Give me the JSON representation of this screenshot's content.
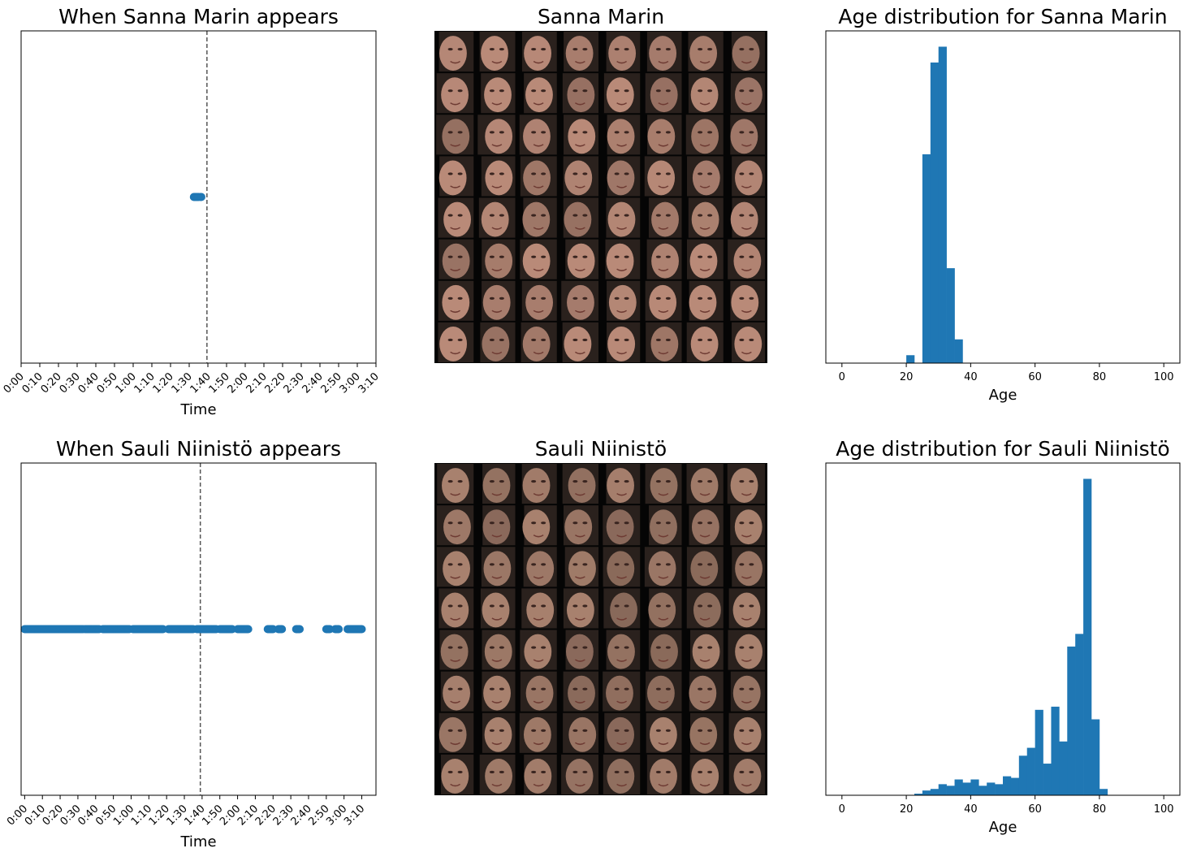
{
  "colors": {
    "marker": "#1f77b4",
    "bar": "#1f77b4",
    "spine": "#000000",
    "refline": "#555555",
    "background": "#ffffff",
    "face_tile_bg": "#050505",
    "face_skin_marin": "#b98a78",
    "face_skin_niinisto": "#a8816e"
  },
  "chart_data": [
    {
      "id": "timeline-marin",
      "type": "scatter",
      "title": "When Sanna Marin appears",
      "xlabel": "Time",
      "ylabel": "",
      "yticks_visible": false,
      "xticks": [
        "0:00",
        "0:10",
        "0:20",
        "0:30",
        "0:40",
        "0:50",
        "1:00",
        "1:10",
        "1:20",
        "1:30",
        "1:40",
        "1:50",
        "2:00",
        "2:10",
        "2:20",
        "2:30",
        "2:40",
        "2:50",
        "3:00",
        "3:10"
      ],
      "xlim": [
        0,
        190
      ],
      "ylim": [
        -1,
        1
      ],
      "points_x": [
        92.5,
        93.0,
        93.5,
        94.0,
        94.5,
        95.0,
        96.0,
        96.5
      ],
      "points_y": 0,
      "vline_x": 99.5
    },
    {
      "id": "faces-marin",
      "type": "image-grid",
      "title": "Sanna Marin",
      "rows": 8,
      "cols": 8
    },
    {
      "id": "age-marin",
      "type": "bar",
      "title": "Age distribution for Sanna Marin",
      "xlabel": "Age",
      "ylabel": "",
      "yticks_visible": false,
      "xticks": [
        0,
        20,
        40,
        60,
        80,
        100
      ],
      "xlim": [
        -5,
        105
      ],
      "ylim": [
        0,
        105
      ],
      "bin_width": 2.5,
      "bins": [
        {
          "x": 20,
          "value": 2.5
        },
        {
          "x": 22.5,
          "value": 0
        },
        {
          "x": 25,
          "value": 66
        },
        {
          "x": 27.5,
          "value": 95
        },
        {
          "x": 30,
          "value": 100
        },
        {
          "x": 32.5,
          "value": 30
        },
        {
          "x": 35,
          "value": 7.5
        }
      ]
    },
    {
      "id": "timeline-niinisto",
      "type": "scatter",
      "title": "When Sauli Niinistö appears",
      "xlabel": "Time",
      "ylabel": "",
      "yticks_visible": false,
      "xticks": [
        "0:00",
        "0:10",
        "0:20",
        "0:30",
        "0:40",
        "0:50",
        "1:00",
        "1:10",
        "1:20",
        "1:30",
        "1:40",
        "1:50",
        "2:00",
        "2:10",
        "2:20",
        "2:30",
        "2:40",
        "2:50",
        "3:00",
        "3:10"
      ],
      "xlim": [
        -2,
        198
      ],
      "ylim": [
        -1,
        1
      ],
      "segments": [
        [
          0,
          33
        ],
        [
          34,
          42
        ],
        [
          44,
          59
        ],
        [
          61,
          78
        ],
        [
          81,
          95
        ],
        [
          97,
          108
        ],
        [
          110,
          117
        ],
        [
          120,
          126
        ],
        [
          137,
          140
        ],
        [
          143,
          145
        ],
        [
          153,
          155
        ],
        [
          170,
          172
        ],
        [
          175,
          177
        ],
        [
          182,
          190
        ]
      ],
      "points_y": 0,
      "vline_x": 99
    },
    {
      "id": "faces-niinisto",
      "type": "image-grid",
      "title": "Sauli Niinistö",
      "rows": 8,
      "cols": 8
    },
    {
      "id": "age-niinisto",
      "type": "bar",
      "title": "Age distribution for Sauli Niinistö",
      "xlabel": "Age",
      "ylabel": "",
      "yticks_visible": false,
      "xticks": [
        0,
        20,
        40,
        60,
        80,
        100
      ],
      "xlim": [
        -5,
        105
      ],
      "ylim": [
        0,
        105
      ],
      "bin_width": 2.5,
      "bins": [
        {
          "x": 22.5,
          "value": 0.5
        },
        {
          "x": 25,
          "value": 1.5
        },
        {
          "x": 27.5,
          "value": 2
        },
        {
          "x": 30,
          "value": 3.5
        },
        {
          "x": 32.5,
          "value": 3
        },
        {
          "x": 35,
          "value": 5
        },
        {
          "x": 37.5,
          "value": 4
        },
        {
          "x": 40,
          "value": 5
        },
        {
          "x": 42.5,
          "value": 3
        },
        {
          "x": 45,
          "value": 4
        },
        {
          "x": 47.5,
          "value": 3.5
        },
        {
          "x": 50,
          "value": 6
        },
        {
          "x": 52.5,
          "value": 5.5
        },
        {
          "x": 55,
          "value": 12.5
        },
        {
          "x": 57.5,
          "value": 15
        },
        {
          "x": 60,
          "value": 27
        },
        {
          "x": 62.5,
          "value": 10
        },
        {
          "x": 65,
          "value": 28
        },
        {
          "x": 67.5,
          "value": 17
        },
        {
          "x": 70,
          "value": 47
        },
        {
          "x": 72.5,
          "value": 51
        },
        {
          "x": 75,
          "value": 100
        },
        {
          "x": 77.5,
          "value": 24
        },
        {
          "x": 80,
          "value": 2
        }
      ]
    }
  ]
}
